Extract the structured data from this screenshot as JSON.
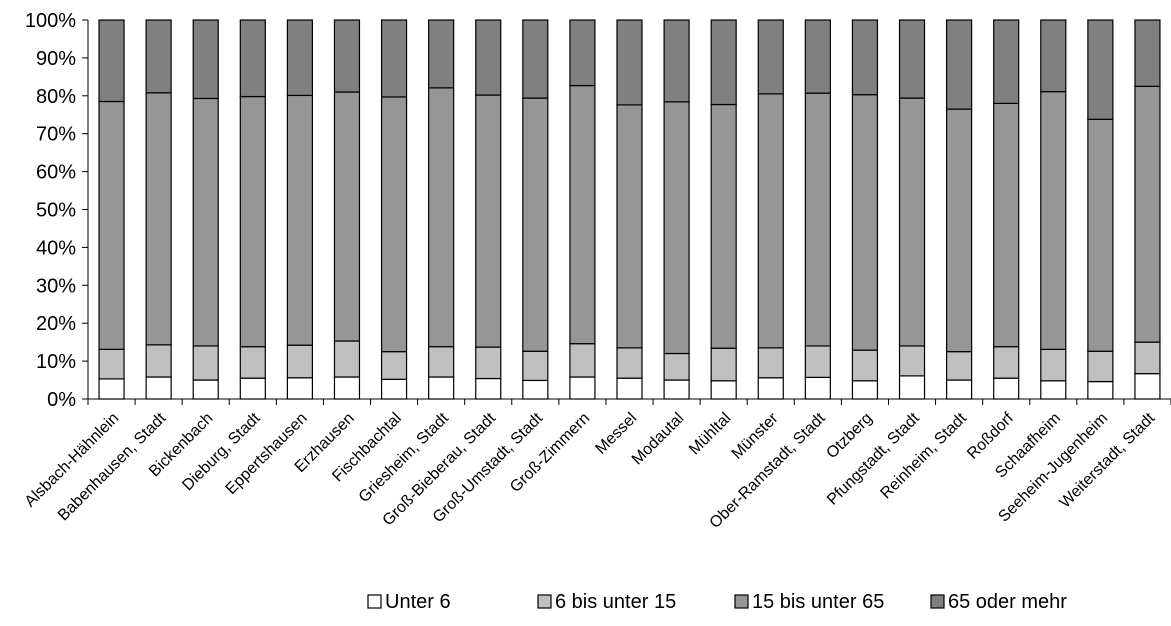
{
  "chart_data": {
    "type": "bar",
    "stacked": true,
    "percent_stacked": true,
    "grid": false,
    "legend_position": "bottom",
    "ylim": [
      0,
      100
    ],
    "yticks": [
      "0%",
      "10%",
      "20%",
      "30%",
      "40%",
      "50%",
      "60%",
      "70%",
      "80%",
      "90%",
      "100%"
    ],
    "categories": [
      "Alsbach-Hähnlein",
      "Babenhausen, Stadt",
      "Bickenbach",
      "Dieburg, Stadt",
      "Eppertshausen",
      "Erzhausen",
      "Fischbachtal",
      "Griesheim, Stadt",
      "Groß-Bieberau, Stadt",
      "Groß-Umstadt, Stadt",
      "Groß-Zimmern",
      "Messel",
      "Modautal",
      "Mühltal",
      "Münster",
      "Ober-Ramstadt, Stadt",
      "Otzberg",
      "Pfungstadt, Stadt",
      "Reinheim, Stadt",
      "Roßdorf",
      "Schaafheim",
      "Seeheim-Jugenheim",
      "Weiterstadt, Stadt"
    ],
    "series": [
      {
        "name": "Unter 6",
        "color": "#ffffff",
        "values": [
          5.3,
          5.8,
          5.0,
          5.5,
          5.6,
          5.8,
          5.2,
          5.8,
          5.4,
          4.9,
          5.8,
          5.5,
          5.0,
          4.8,
          5.6,
          5.7,
          4.8,
          6.1,
          5.0,
          5.5,
          4.8,
          4.6,
          6.7
        ]
      },
      {
        "name": "6 bis unter 15",
        "color": "#c0c0c0",
        "values": [
          7.8,
          8.5,
          9.0,
          8.3,
          8.6,
          9.5,
          7.3,
          8.0,
          8.3,
          7.7,
          8.8,
          8.0,
          7.0,
          8.6,
          7.9,
          8.3,
          8.1,
          7.9,
          7.5,
          8.3,
          8.3,
          8.0,
          8.3
        ]
      },
      {
        "name": "15 bis unter 65",
        "color": "#969696",
        "values": [
          65.4,
          66.5,
          65.3,
          66.0,
          65.9,
          65.7,
          67.2,
          68.3,
          66.5,
          66.8,
          68.1,
          64.1,
          66.4,
          64.3,
          67.0,
          66.7,
          67.4,
          65.4,
          64.0,
          64.2,
          68.0,
          61.2,
          67.5
        ]
      },
      {
        "name": "65 oder mehr",
        "color": "#808080",
        "values": [
          21.5,
          19.2,
          20.7,
          20.2,
          19.9,
          19.0,
          20.3,
          17.9,
          19.8,
          20.6,
          17.3,
          22.4,
          21.6,
          22.3,
          19.5,
          19.3,
          19.7,
          20.6,
          23.5,
          22.0,
          18.9,
          26.2,
          17.5
        ]
      }
    ]
  }
}
